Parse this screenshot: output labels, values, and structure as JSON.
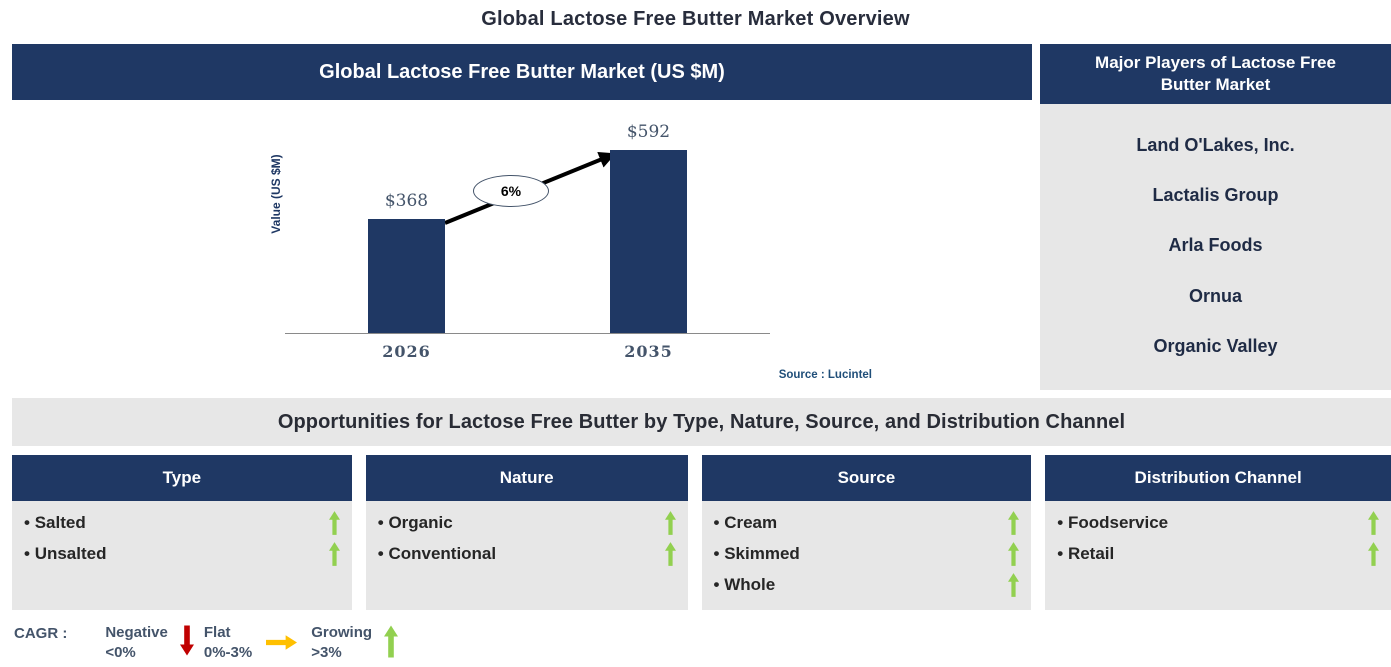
{
  "title": "Global Lactose Free Butter Market Overview",
  "chart_panel": {
    "header": "Global Lactose Free Butter Market (US $M)",
    "source_note": "Source : Lucintel"
  },
  "chart_data": {
    "type": "bar",
    "title": "Global Lactose Free Butter Market (US $M)",
    "categories": [
      "2026",
      "2035"
    ],
    "values": [
      368,
      592
    ],
    "value_labels": [
      "$368",
      "$592"
    ],
    "ylabel": "Value (US $M)",
    "cagr_annotation": "6%",
    "bar_color": "#1F3864",
    "ylim": [
      0,
      650
    ],
    "grid": false,
    "legend_position": "none",
    "source": "Source : Lucintel"
  },
  "players_panel": {
    "header": "Major Players of Lactose Free Butter Market",
    "players": [
      "Land O'Lakes, Inc.",
      "Lactalis Group",
      "Arla Foods",
      "Ornua",
      "Organic Valley"
    ]
  },
  "opportunities": {
    "banner": "Opportunities for Lactose Free Butter by Type, Nature, Source, and Distribution Channel",
    "columns": [
      {
        "header": "Type",
        "items": [
          {
            "label": "Salted",
            "trend": "growing"
          },
          {
            "label": "Unsalted",
            "trend": "growing"
          }
        ]
      },
      {
        "header": "Nature",
        "items": [
          {
            "label": "Organic",
            "trend": "growing"
          },
          {
            "label": "Conventional",
            "trend": "growing"
          }
        ]
      },
      {
        "header": "Source",
        "items": [
          {
            "label": "Cream",
            "trend": "growing"
          },
          {
            "label": "Skimmed",
            "trend": "growing"
          },
          {
            "label": "Whole",
            "trend": "growing"
          }
        ]
      },
      {
        "header": "Distribution Channel",
        "items": [
          {
            "label": "Foodservice",
            "trend": "growing"
          },
          {
            "label": "Retail",
            "trend": "growing"
          }
        ]
      }
    ]
  },
  "legend": {
    "label": "CAGR :",
    "items": [
      {
        "name": "Negative",
        "range": "<0%",
        "direction": "down",
        "color": "#C00000"
      },
      {
        "name": "Flat",
        "range": "0%-3%",
        "direction": "right",
        "color": "#FFC000"
      },
      {
        "name": "Growing",
        "range": ">3%",
        "direction": "up",
        "color": "#92D050"
      }
    ]
  },
  "colors": {
    "navy": "#1F3864",
    "panel_gray": "#E7E7E7",
    "growing_green": "#92D050",
    "negative_red": "#C00000",
    "flat_gold": "#FFC000",
    "source_blue": "#1F4E79",
    "axis_text": "#44546A"
  }
}
